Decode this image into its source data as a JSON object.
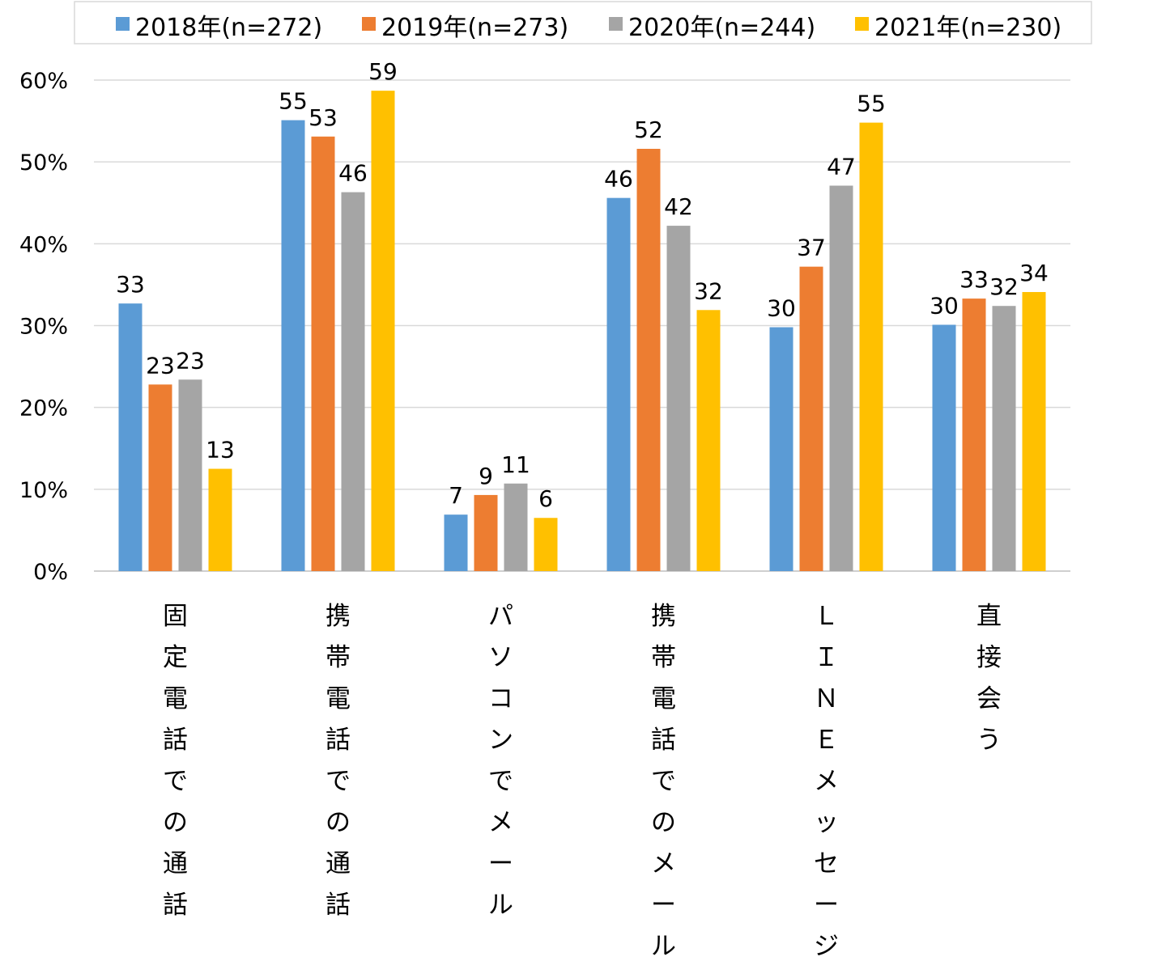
{
  "chart_data": {
    "type": "bar",
    "title": "",
    "xlabel": "",
    "ylabel": "",
    "ylim": [
      0,
      60
    ],
    "y_ticks": [
      "0%",
      "10%",
      "20%",
      "30%",
      "40%",
      "50%",
      "60%"
    ],
    "grid": true,
    "legend_position": "top",
    "categories": [
      "固定電話での通話",
      "携帯電話での通話",
      "パソコンでメール",
      "携帯電話でのメール",
      "ＬＩＮＥメッセージ",
      "直接会う"
    ],
    "series": [
      {
        "name": "2018年(n=272)",
        "color": "#5b9bd5",
        "values": [
          33,
          55,
          7,
          46,
          30,
          30
        ],
        "bar_values": [
          32.7,
          55.1,
          6.9,
          45.6,
          29.8,
          30.1
        ]
      },
      {
        "name": "2019年(n=273)",
        "color": "#ed7d31",
        "values": [
          23,
          53,
          9,
          52,
          37,
          33
        ],
        "bar_values": [
          22.8,
          53.1,
          9.3,
          51.6,
          37.2,
          33.3
        ]
      },
      {
        "name": "2020年(n=244)",
        "color": "#a5a5a5",
        "values": [
          23,
          46,
          11,
          42,
          47,
          32
        ],
        "bar_values": [
          23.4,
          46.3,
          10.7,
          42.2,
          47.1,
          32.4
        ]
      },
      {
        "name": "2021年(n=230)",
        "color": "#ffc000",
        "values": [
          13,
          59,
          6,
          32,
          55,
          34
        ],
        "bar_values": [
          12.5,
          58.7,
          6.5,
          31.9,
          54.8,
          34.1
        ]
      }
    ]
  }
}
